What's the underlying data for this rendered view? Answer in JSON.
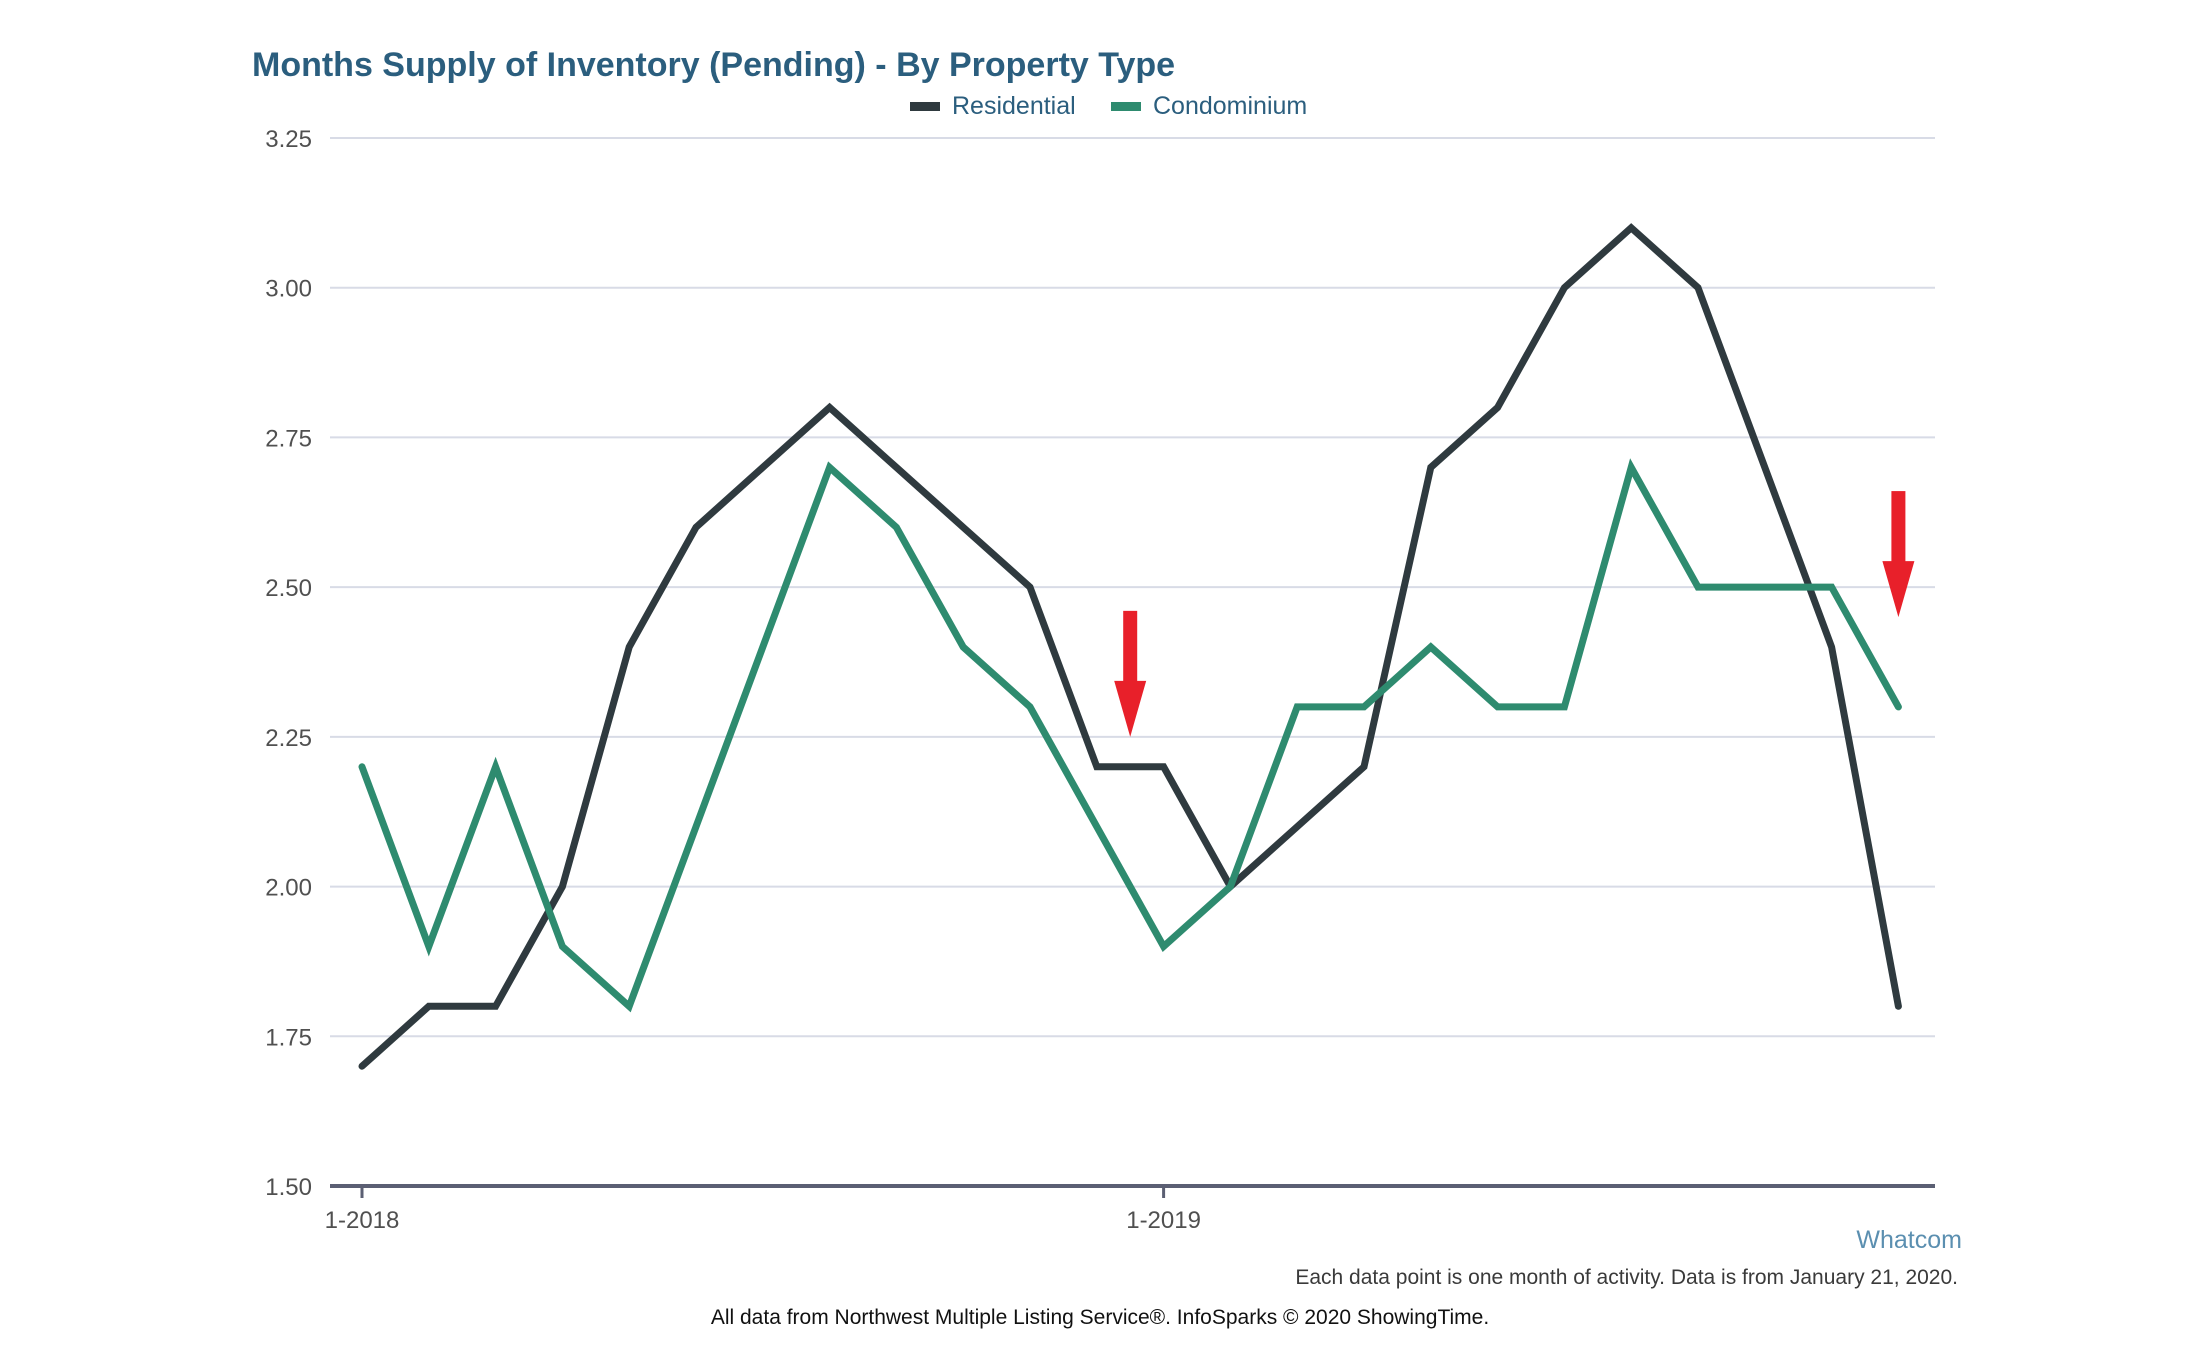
{
  "colors": {
    "title": "#2b5e7e",
    "residential": "#2f3a3f",
    "condominium": "#2e8b6f",
    "grid": "#d8dbe6",
    "axis": "#5b5f73",
    "tick_label": "#505050",
    "note": "#3a3a3a",
    "region": "#5b8fb0",
    "arrow": "#e8202a"
  },
  "chart_data": {
    "type": "line",
    "title": "Months Supply of Inventory (Pending) - By Property Type",
    "xlabel": "",
    "ylabel": "",
    "ylim": [
      1.5,
      3.25
    ],
    "yticks": [
      1.5,
      1.75,
      2.0,
      2.25,
      2.5,
      2.75,
      3.0,
      3.25
    ],
    "ytick_labels": [
      "1.50",
      "1.75",
      "2.00",
      "2.25",
      "2.50",
      "2.75",
      "3.00",
      "3.25"
    ],
    "x": [
      "1-2018",
      "2-2018",
      "3-2018",
      "4-2018",
      "5-2018",
      "6-2018",
      "7-2018",
      "8-2018",
      "9-2018",
      "10-2018",
      "11-2018",
      "12-2018",
      "1-2019",
      "2-2019",
      "3-2019",
      "4-2019",
      "5-2019",
      "6-2019",
      "7-2019",
      "8-2019",
      "9-2019",
      "10-2019",
      "11-2019",
      "12-2019"
    ],
    "xtick_labels": [
      {
        "index": 0,
        "label": "1-2018"
      },
      {
        "index": 12,
        "label": "1-2019"
      }
    ],
    "series": [
      {
        "name": "Residential",
        "color_key": "residential",
        "values": [
          1.7,
          1.8,
          1.8,
          2.0,
          2.4,
          2.6,
          2.7,
          2.8,
          2.7,
          2.6,
          2.5,
          2.2,
          2.2,
          2.0,
          2.1,
          2.2,
          2.7,
          2.8,
          3.0,
          3.1,
          3.0,
          2.7,
          2.4,
          1.8
        ]
      },
      {
        "name": "Condominium",
        "color_key": "condominium",
        "values": [
          2.2,
          1.9,
          2.2,
          1.9,
          1.8,
          2.1,
          2.4,
          2.7,
          2.6,
          2.4,
          2.3,
          2.1,
          1.9,
          2.0,
          2.3,
          2.3,
          2.4,
          2.3,
          2.3,
          2.7,
          2.5,
          2.5,
          2.5,
          2.3
        ]
      }
    ],
    "legend": {
      "placement": "top",
      "entries": [
        "Residential",
        "Condominium"
      ]
    },
    "grid": true,
    "annotations": [
      {
        "type": "arrow",
        "direction": "down",
        "near_index": 11.5,
        "near_value": 2.25
      },
      {
        "type": "arrow",
        "direction": "down",
        "near_index": 23,
        "near_value": 2.45
      }
    ]
  },
  "footer": {
    "region_label": "Whatcom",
    "data_note": "Each data point is one month of activity. Data is from January 21, 2020.",
    "source_note": "All data from Northwest Multiple Listing Service®. InfoSparks © 2020 ShowingTime."
  }
}
